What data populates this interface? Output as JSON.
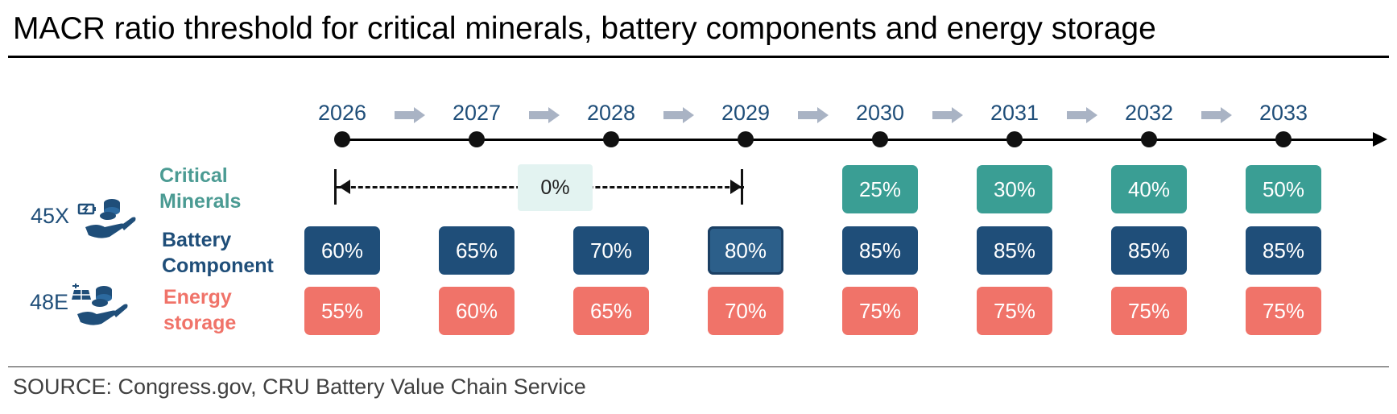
{
  "title": "MACR ratio threshold for critical minerals, battery components and energy storage",
  "source": "SOURCE: Congress.gov, CRU Battery Value Chain Service",
  "credits": {
    "x45": "45X",
    "e48": "48E"
  },
  "categories": {
    "critical": [
      "Critical",
      "Minerals"
    ],
    "battery": [
      "Battery",
      "Component"
    ],
    "energy": [
      "Energy",
      "storage"
    ]
  },
  "years": [
    "2026",
    "2027",
    "2028",
    "2029",
    "2030",
    "2031",
    "2032",
    "2033"
  ],
  "critical_minerals_span": {
    "label": "0%",
    "from": "2026",
    "to": "2029"
  },
  "critical_minerals": [
    "",
    "",
    "",
    "",
    "25%",
    "30%",
    "40%",
    "50%"
  ],
  "battery_component": [
    "60%",
    "65%",
    "70%",
    "80%",
    "85%",
    "85%",
    "85%",
    "85%"
  ],
  "energy_storage": [
    "55%",
    "60%",
    "65%",
    "70%",
    "75%",
    "75%",
    "75%",
    "75%"
  ],
  "colors": {
    "critical": "#3a9e94",
    "battery": "#1f4e79",
    "energy": "#f07369",
    "year_text": "#1f4e79",
    "chevron": "#a9b3c4"
  }
}
